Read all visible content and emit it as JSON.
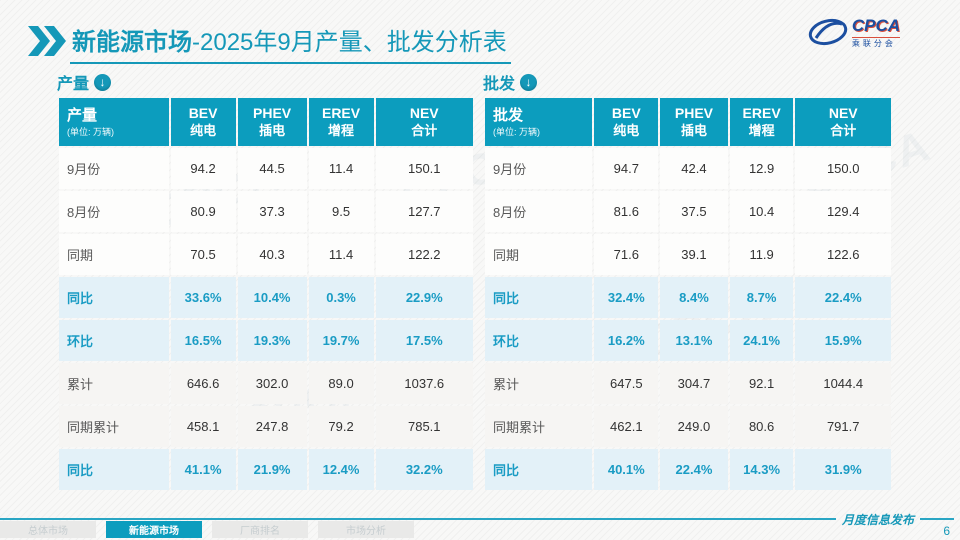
{
  "slide": {
    "title_bold": "新能源市场",
    "title_rest": "-2025年9月产量、批发分析表",
    "logo": {
      "cpca": "CPCA",
      "sub": "乘联分会"
    },
    "footer": {
      "note": "月度信息发布",
      "page": "6"
    },
    "nav_tabs": [
      {
        "label": "总体市场",
        "active": false
      },
      {
        "label": "新能源市场",
        "active": true
      },
      {
        "label": "厂商排名",
        "active": false
      },
      {
        "label": "市场分析",
        "active": false
      }
    ],
    "colors": {
      "accent": "#0c9dbe",
      "row_highlight": "#e3f1f8"
    },
    "watermark": "CPCA"
  },
  "tables": [
    {
      "section_label": "产量",
      "header": {
        "title": "产量",
        "unit": "(单位: 万辆)",
        "cols": [
          {
            "en": "BEV",
            "cn": "纯电"
          },
          {
            "en": "PHEV",
            "cn": "插电"
          },
          {
            "en": "EREV",
            "cn": "增程"
          },
          {
            "en": "NEV",
            "cn": "合计"
          }
        ]
      },
      "rows": [
        {
          "label": "9月份",
          "values": [
            "94.2",
            "44.5",
            "11.4",
            "150.1"
          ],
          "style": "normal"
        },
        {
          "label": "8月份",
          "values": [
            "80.9",
            "37.3",
            "9.5",
            "127.7"
          ],
          "style": "normal"
        },
        {
          "label": "同期",
          "values": [
            "70.5",
            "40.3",
            "11.4",
            "122.2"
          ],
          "style": "normal"
        },
        {
          "label": "同比",
          "values": [
            "33.6%",
            "10.4%",
            "0.3%",
            "22.9%"
          ],
          "style": "pct"
        },
        {
          "label": "环比",
          "values": [
            "16.5%",
            "19.3%",
            "19.7%",
            "17.5%"
          ],
          "style": "pct"
        },
        {
          "label": "累计",
          "values": [
            "646.6",
            "302.0",
            "89.0",
            "1037.6"
          ],
          "style": "cum"
        },
        {
          "label": "同期累计",
          "values": [
            "458.1",
            "247.8",
            "79.2",
            "785.1"
          ],
          "style": "cum"
        },
        {
          "label": "同比",
          "values": [
            "41.1%",
            "21.9%",
            "12.4%",
            "32.2%"
          ],
          "style": "pct"
        }
      ]
    },
    {
      "section_label": "批发",
      "header": {
        "title": "批发",
        "unit": "(单位: 万辆)",
        "cols": [
          {
            "en": "BEV",
            "cn": "纯电"
          },
          {
            "en": "PHEV",
            "cn": "插电"
          },
          {
            "en": "EREV",
            "cn": "增程"
          },
          {
            "en": "NEV",
            "cn": "合计"
          }
        ]
      },
      "rows": [
        {
          "label": "9月份",
          "values": [
            "94.7",
            "42.4",
            "12.9",
            "150.0"
          ],
          "style": "normal"
        },
        {
          "label": "8月份",
          "values": [
            "81.6",
            "37.5",
            "10.4",
            "129.4"
          ],
          "style": "normal"
        },
        {
          "label": "同期",
          "values": [
            "71.6",
            "39.1",
            "11.9",
            "122.6"
          ],
          "style": "normal"
        },
        {
          "label": "同比",
          "values": [
            "32.4%",
            "8.4%",
            "8.7%",
            "22.4%"
          ],
          "style": "pct"
        },
        {
          "label": "环比",
          "values": [
            "16.2%",
            "13.1%",
            "24.1%",
            "15.9%"
          ],
          "style": "pct"
        },
        {
          "label": "累计",
          "values": [
            "647.5",
            "304.7",
            "92.1",
            "1044.4"
          ],
          "style": "cum"
        },
        {
          "label": "同期累计",
          "values": [
            "462.1",
            "249.0",
            "80.6",
            "791.7"
          ],
          "style": "cum"
        },
        {
          "label": "同比",
          "values": [
            "40.1%",
            "22.4%",
            "14.3%",
            "31.9%"
          ],
          "style": "pct"
        }
      ]
    }
  ]
}
